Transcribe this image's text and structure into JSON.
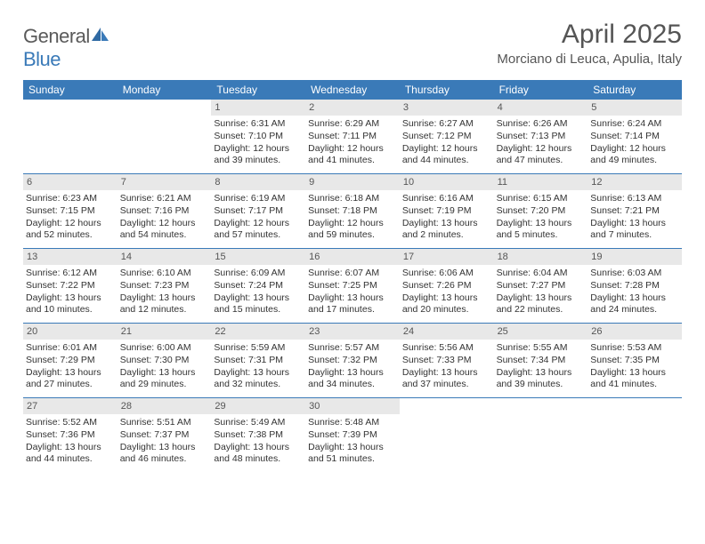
{
  "brand": {
    "part1": "General",
    "part2": "Blue"
  },
  "title": "April 2025",
  "location": "Morciano di Leuca, Apulia, Italy",
  "colors": {
    "accent": "#3a7ab8",
    "header_bg": "#3a7ab8",
    "num_bg": "#e8e8e8",
    "text": "#333333",
    "muted": "#555555"
  },
  "day_headers": [
    "Sunday",
    "Monday",
    "Tuesday",
    "Wednesday",
    "Thursday",
    "Friday",
    "Saturday"
  ],
  "weeks": [
    [
      {
        "empty": true
      },
      {
        "empty": true
      },
      {
        "n": "1",
        "sr": "Sunrise: 6:31 AM",
        "ss": "Sunset: 7:10 PM",
        "d1": "Daylight: 12 hours",
        "d2": "and 39 minutes."
      },
      {
        "n": "2",
        "sr": "Sunrise: 6:29 AM",
        "ss": "Sunset: 7:11 PM",
        "d1": "Daylight: 12 hours",
        "d2": "and 41 minutes."
      },
      {
        "n": "3",
        "sr": "Sunrise: 6:27 AM",
        "ss": "Sunset: 7:12 PM",
        "d1": "Daylight: 12 hours",
        "d2": "and 44 minutes."
      },
      {
        "n": "4",
        "sr": "Sunrise: 6:26 AM",
        "ss": "Sunset: 7:13 PM",
        "d1": "Daylight: 12 hours",
        "d2": "and 47 minutes."
      },
      {
        "n": "5",
        "sr": "Sunrise: 6:24 AM",
        "ss": "Sunset: 7:14 PM",
        "d1": "Daylight: 12 hours",
        "d2": "and 49 minutes."
      }
    ],
    [
      {
        "n": "6",
        "sr": "Sunrise: 6:23 AM",
        "ss": "Sunset: 7:15 PM",
        "d1": "Daylight: 12 hours",
        "d2": "and 52 minutes."
      },
      {
        "n": "7",
        "sr": "Sunrise: 6:21 AM",
        "ss": "Sunset: 7:16 PM",
        "d1": "Daylight: 12 hours",
        "d2": "and 54 minutes."
      },
      {
        "n": "8",
        "sr": "Sunrise: 6:19 AM",
        "ss": "Sunset: 7:17 PM",
        "d1": "Daylight: 12 hours",
        "d2": "and 57 minutes."
      },
      {
        "n": "9",
        "sr": "Sunrise: 6:18 AM",
        "ss": "Sunset: 7:18 PM",
        "d1": "Daylight: 12 hours",
        "d2": "and 59 minutes."
      },
      {
        "n": "10",
        "sr": "Sunrise: 6:16 AM",
        "ss": "Sunset: 7:19 PM",
        "d1": "Daylight: 13 hours",
        "d2": "and 2 minutes."
      },
      {
        "n": "11",
        "sr": "Sunrise: 6:15 AM",
        "ss": "Sunset: 7:20 PM",
        "d1": "Daylight: 13 hours",
        "d2": "and 5 minutes."
      },
      {
        "n": "12",
        "sr": "Sunrise: 6:13 AM",
        "ss": "Sunset: 7:21 PM",
        "d1": "Daylight: 13 hours",
        "d2": "and 7 minutes."
      }
    ],
    [
      {
        "n": "13",
        "sr": "Sunrise: 6:12 AM",
        "ss": "Sunset: 7:22 PM",
        "d1": "Daylight: 13 hours",
        "d2": "and 10 minutes."
      },
      {
        "n": "14",
        "sr": "Sunrise: 6:10 AM",
        "ss": "Sunset: 7:23 PM",
        "d1": "Daylight: 13 hours",
        "d2": "and 12 minutes."
      },
      {
        "n": "15",
        "sr": "Sunrise: 6:09 AM",
        "ss": "Sunset: 7:24 PM",
        "d1": "Daylight: 13 hours",
        "d2": "and 15 minutes."
      },
      {
        "n": "16",
        "sr": "Sunrise: 6:07 AM",
        "ss": "Sunset: 7:25 PM",
        "d1": "Daylight: 13 hours",
        "d2": "and 17 minutes."
      },
      {
        "n": "17",
        "sr": "Sunrise: 6:06 AM",
        "ss": "Sunset: 7:26 PM",
        "d1": "Daylight: 13 hours",
        "d2": "and 20 minutes."
      },
      {
        "n": "18",
        "sr": "Sunrise: 6:04 AM",
        "ss": "Sunset: 7:27 PM",
        "d1": "Daylight: 13 hours",
        "d2": "and 22 minutes."
      },
      {
        "n": "19",
        "sr": "Sunrise: 6:03 AM",
        "ss": "Sunset: 7:28 PM",
        "d1": "Daylight: 13 hours",
        "d2": "and 24 minutes."
      }
    ],
    [
      {
        "n": "20",
        "sr": "Sunrise: 6:01 AM",
        "ss": "Sunset: 7:29 PM",
        "d1": "Daylight: 13 hours",
        "d2": "and 27 minutes."
      },
      {
        "n": "21",
        "sr": "Sunrise: 6:00 AM",
        "ss": "Sunset: 7:30 PM",
        "d1": "Daylight: 13 hours",
        "d2": "and 29 minutes."
      },
      {
        "n": "22",
        "sr": "Sunrise: 5:59 AM",
        "ss": "Sunset: 7:31 PM",
        "d1": "Daylight: 13 hours",
        "d2": "and 32 minutes."
      },
      {
        "n": "23",
        "sr": "Sunrise: 5:57 AM",
        "ss": "Sunset: 7:32 PM",
        "d1": "Daylight: 13 hours",
        "d2": "and 34 minutes."
      },
      {
        "n": "24",
        "sr": "Sunrise: 5:56 AM",
        "ss": "Sunset: 7:33 PM",
        "d1": "Daylight: 13 hours",
        "d2": "and 37 minutes."
      },
      {
        "n": "25",
        "sr": "Sunrise: 5:55 AM",
        "ss": "Sunset: 7:34 PM",
        "d1": "Daylight: 13 hours",
        "d2": "and 39 minutes."
      },
      {
        "n": "26",
        "sr": "Sunrise: 5:53 AM",
        "ss": "Sunset: 7:35 PM",
        "d1": "Daylight: 13 hours",
        "d2": "and 41 minutes."
      }
    ],
    [
      {
        "n": "27",
        "sr": "Sunrise: 5:52 AM",
        "ss": "Sunset: 7:36 PM",
        "d1": "Daylight: 13 hours",
        "d2": "and 44 minutes."
      },
      {
        "n": "28",
        "sr": "Sunrise: 5:51 AM",
        "ss": "Sunset: 7:37 PM",
        "d1": "Daylight: 13 hours",
        "d2": "and 46 minutes."
      },
      {
        "n": "29",
        "sr": "Sunrise: 5:49 AM",
        "ss": "Sunset: 7:38 PM",
        "d1": "Daylight: 13 hours",
        "d2": "and 48 minutes."
      },
      {
        "n": "30",
        "sr": "Sunrise: 5:48 AM",
        "ss": "Sunset: 7:39 PM",
        "d1": "Daylight: 13 hours",
        "d2": "and 51 minutes."
      },
      {
        "empty": true
      },
      {
        "empty": true
      },
      {
        "empty": true
      }
    ]
  ]
}
